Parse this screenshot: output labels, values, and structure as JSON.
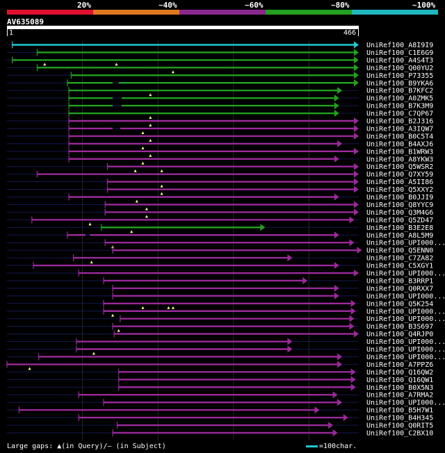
{
  "chart_data": {
    "type": "alignment",
    "query": {
      "name": "AV635089",
      "length": 466,
      "ruler_start_label": "1",
      "ruler_end_label": "466"
    },
    "legend": [
      {
        "label": "20%",
        "color": "#e0102e"
      },
      {
        "label": "~40%",
        "color": "#e07820"
      },
      {
        "label": "~60%",
        "color": "#8a2890"
      },
      {
        "label": "~80%",
        "color": "#22a020"
      },
      {
        "label": "~100%",
        "color": "#20b8c0"
      }
    ],
    "colors": {
      "cyan": "#20c8d0",
      "green": "#22a020",
      "purple": "#9a2a9a",
      "line": "#141850",
      "grid": "#262626"
    },
    "hits": [
      {
        "name": "UniRef100_A8I9I9",
        "start": 7,
        "end": 466,
        "color": "cyan",
        "gaps": [],
        "markers": []
      },
      {
        "name": "UniRef100_C1E6G9",
        "start": 40,
        "end": 466,
        "color": "green",
        "gaps": [],
        "markers": []
      },
      {
        "name": "UniRef100_A4S4T3",
        "start": 7,
        "end": 466,
        "color": "green",
        "gaps": [],
        "markers": [
          50,
          145
        ]
      },
      {
        "name": "UniRef100_Q00YU2",
        "start": 40,
        "end": 466,
        "color": "green",
        "gaps": [],
        "markers": [
          220
        ]
      },
      {
        "name": "UniRef100_P73355",
        "start": 85,
        "end": 466,
        "color": "green",
        "gaps": [],
        "markers": []
      },
      {
        "name": "UniRef100_B9YKA6",
        "start": 80,
        "end": 466,
        "color": "green",
        "gaps": [
          [
            140,
            148
          ]
        ],
        "markers": []
      },
      {
        "name": "UniRef100_B7KFC2",
        "start": 82,
        "end": 444,
        "color": "green",
        "gaps": [],
        "markers": [
          190
        ]
      },
      {
        "name": "UniRef100_A0ZMK5",
        "start": 82,
        "end": 440,
        "color": "green",
        "gaps": [
          [
            140,
            152
          ]
        ],
        "markers": []
      },
      {
        "name": "UniRef100_B7K3M9",
        "start": 82,
        "end": 440,
        "color": "green",
        "gaps": [
          [
            140,
            152
          ]
        ],
        "markers": []
      },
      {
        "name": "UniRef100_C7QP67",
        "start": 82,
        "end": 440,
        "color": "green",
        "gaps": [],
        "markers": [
          190
        ]
      },
      {
        "name": "UniRef100_B2J316",
        "start": 82,
        "end": 466,
        "color": "purple",
        "gaps": [],
        "markers": [
          190
        ]
      },
      {
        "name": "UniRef100_A3IQW7",
        "start": 82,
        "end": 466,
        "color": "purple",
        "gaps": [
          [
            140,
            150
          ]
        ],
        "markers": [
          180
        ]
      },
      {
        "name": "UniRef100_B0C5T4",
        "start": 82,
        "end": 466,
        "color": "purple",
        "gaps": [],
        "markers": [
          190
        ]
      },
      {
        "name": "UniRef100_B4AXJ6",
        "start": 82,
        "end": 444,
        "color": "purple",
        "gaps": [],
        "markers": [
          180
        ]
      },
      {
        "name": "UniRef100_B1WRW3",
        "start": 82,
        "end": 466,
        "color": "purple",
        "gaps": [],
        "markers": [
          190
        ]
      },
      {
        "name": "UniRef100_A8YKW3",
        "start": 82,
        "end": 440,
        "color": "purple",
        "gaps": [],
        "markers": [
          180
        ]
      },
      {
        "name": "UniRef100_Q5WSR2",
        "start": 133,
        "end": 466,
        "color": "purple",
        "gaps": [],
        "markers": [
          170,
          205
        ]
      },
      {
        "name": "UniRef100_Q7XY59",
        "start": 40,
        "end": 466,
        "color": "purple",
        "gaps": [],
        "markers": []
      },
      {
        "name": "UniRef100_A5II86",
        "start": 133,
        "end": 466,
        "color": "purple",
        "gaps": [],
        "markers": [
          205
        ]
      },
      {
        "name": "UniRef100_Q5XXY2",
        "start": 133,
        "end": 466,
        "color": "purple",
        "gaps": [],
        "markers": [
          205
        ]
      },
      {
        "name": "UniRef100_B0JJI9",
        "start": 82,
        "end": 440,
        "color": "purple",
        "gaps": [],
        "markers": [
          172
        ]
      },
      {
        "name": "UniRef100_Q8YYC9",
        "start": 130,
        "end": 466,
        "color": "purple",
        "gaps": [],
        "markers": [
          185
        ]
      },
      {
        "name": "UniRef100_Q3M4G6",
        "start": 130,
        "end": 466,
        "color": "purple",
        "gaps": [],
        "markers": [
          185
        ]
      },
      {
        "name": "UniRef100_Q5ZD47",
        "start": 33,
        "end": 460,
        "color": "purple",
        "gaps": [],
        "markers": [
          110
        ]
      },
      {
        "name": "UniRef100_B3E2E8",
        "start": 125,
        "end": 342,
        "color": "green",
        "gaps": [],
        "markers": [
          165
        ]
      },
      {
        "name": "UniRef100_A8L5M9",
        "start": 80,
        "end": 440,
        "color": "purple",
        "gaps": [
          [
            104,
            110
          ]
        ],
        "markers": []
      },
      {
        "name": "UniRef100_UPI000_1",
        "start": 130,
        "end": 460,
        "color": "purple",
        "gaps": [],
        "markers": [
          140
        ]
      },
      {
        "name": "UniRef100_Q5ENN0",
        "start": 140,
        "end": 470,
        "color": "purple",
        "gaps": [],
        "markers": []
      },
      {
        "name": "UniRef100_C7ZA82",
        "start": 88,
        "end": 378,
        "color": "purple",
        "gaps": [],
        "markers": [
          112
        ]
      },
      {
        "name": "UniRef100_C5XGY1",
        "start": 35,
        "end": 440,
        "color": "purple",
        "gaps": [],
        "markers": []
      },
      {
        "name": "UniRef100_UPI000_2",
        "start": 95,
        "end": 466,
        "color": "purple",
        "gaps": [],
        "markers": []
      },
      {
        "name": "UniRef100_B3RRP1",
        "start": 128,
        "end": 398,
        "color": "purple",
        "gaps": [],
        "markers": []
      },
      {
        "name": "UniRef100_Q0RXX7",
        "start": 140,
        "end": 440,
        "color": "purple",
        "gaps": [],
        "markers": []
      },
      {
        "name": "UniRef100_UPI000_3",
        "start": 140,
        "end": 440,
        "color": "purple",
        "gaps": [],
        "markers": []
      },
      {
        "name": "UniRef100_Q5K254",
        "start": 128,
        "end": 462,
        "color": "purple",
        "gaps": [],
        "markers": [
          180,
          214,
          220
        ]
      },
      {
        "name": "UniRef100_UPI000_4",
        "start": 128,
        "end": 462,
        "color": "purple",
        "gaps": [],
        "markers": [
          140
        ]
      },
      {
        "name": "UniRef100_UPI000_5",
        "start": 150,
        "end": 460,
        "color": "purple",
        "gaps": [],
        "markers": []
      },
      {
        "name": "UniRef100_B3S697",
        "start": 140,
        "end": 460,
        "color": "purple",
        "gaps": [],
        "markers": [
          148
        ]
      },
      {
        "name": "UniRef100_Q4RJP0",
        "start": 142,
        "end": 466,
        "color": "purple",
        "gaps": [],
        "markers": []
      },
      {
        "name": "UniRef100_UPI000_6",
        "start": 92,
        "end": 378,
        "color": "purple",
        "gaps": [],
        "markers": []
      },
      {
        "name": "UniRef100_UPI000_7",
        "start": 92,
        "end": 378,
        "color": "purple",
        "gaps": [],
        "markers": [
          115
        ]
      },
      {
        "name": "UniRef100_UPI000_8",
        "start": 42,
        "end": 444,
        "color": "purple",
        "gaps": [],
        "markers": []
      },
      {
        "name": "UniRef100_A7PPZ6",
        "start": 0,
        "end": 444,
        "color": "purple",
        "gaps": [],
        "markers": [
          30
        ]
      },
      {
        "name": "UniRef100_Q16QW2",
        "start": 148,
        "end": 462,
        "color": "purple",
        "gaps": [],
        "markers": []
      },
      {
        "name": "UniRef100_Q16QW1",
        "start": 148,
        "end": 462,
        "color": "purple",
        "gaps": [],
        "markers": []
      },
      {
        "name": "UniRef100_B0X5N3",
        "start": 148,
        "end": 462,
        "color": "purple",
        "gaps": [],
        "markers": []
      },
      {
        "name": "UniRef100_A7RMA2",
        "start": 95,
        "end": 438,
        "color": "purple",
        "gaps": [],
        "markers": []
      },
      {
        "name": "UniRef100_UPI000_9",
        "start": 128,
        "end": 444,
        "color": "purple",
        "gaps": [],
        "markers": []
      },
      {
        "name": "UniRef100_B5H7W1",
        "start": 16,
        "end": 414,
        "color": "purple",
        "gaps": [],
        "markers": []
      },
      {
        "name": "UniRef100_B4H345",
        "start": 95,
        "end": 452,
        "color": "purple",
        "gaps": [],
        "markers": []
      },
      {
        "name": "UniRef100_Q0RIT5",
        "start": 146,
        "end": 432,
        "color": "purple",
        "gaps": [],
        "markers": []
      },
      {
        "name": "UniRef100_C2BX10",
        "start": 140,
        "end": 438,
        "color": "purple",
        "gaps": [],
        "markers": []
      }
    ],
    "hit_labels": [
      "UniRef100_A8I9I9",
      "UniRef100_C1E6G9",
      "UniRef100_A4S4T3",
      "UniRef100_Q00YU2",
      "UniRef100_P73355",
      "UniRef100_B9YKA6",
      "UniRef100_B7KFC2",
      "UniRef100_A0ZMK5",
      "UniRef100_B7K3M9",
      "UniRef100_C7QP67",
      "UniRef100_B2J316",
      "UniRef100_A3IQW7",
      "UniRef100_B0C5T4",
      "UniRef100_B4AXJ6",
      "UniRef100_B1WRW3",
      "UniRef100_A8YKW3",
      "UniRef100_Q5WSR2",
      "UniRef100_Q7XY59",
      "UniRef100_A5II86",
      "UniRef100_Q5XXY2",
      "UniRef100_B0JJI9",
      "UniRef100_Q8YYC9",
      "UniRef100_Q3M4G6",
      "UniRef100_Q5ZD47",
      "UniRef100_B3E2E8",
      "UniRef100_A8L5M9",
      "UniRef100_UPI000...",
      "UniRef100_Q5ENN0",
      "UniRef100_C7ZA82",
      "UniRef100_C5XGY1",
      "UniRef100_UPI000...",
      "UniRef100_B3RRP1",
      "UniRef100_Q0RXX7",
      "UniRef100_UPI000...",
      "UniRef100_Q5K254",
      "UniRef100_UPI000...",
      "UniRef100_UPI000...",
      "UniRef100_B3S697",
      "UniRef100_Q4RJP0",
      "UniRef100_UPI000...",
      "UniRef100_UPI000...",
      "UniRef100_UPI000...",
      "UniRef100_A7PPZ6",
      "UniRef100_Q16QW2",
      "UniRef100_Q16QW1",
      "UniRef100_B0X5N3",
      "UniRef100_A7RMA2",
      "UniRef100_UPI000...",
      "UniRef100_B5H7W1",
      "UniRef100_B4H345",
      "UniRef100_Q0RIT5",
      "UniRef100_C2BX10"
    ],
    "footer_text": "Large gaps: ▲(in Query)/— (in Subject)",
    "scale_text": "=100char."
  }
}
